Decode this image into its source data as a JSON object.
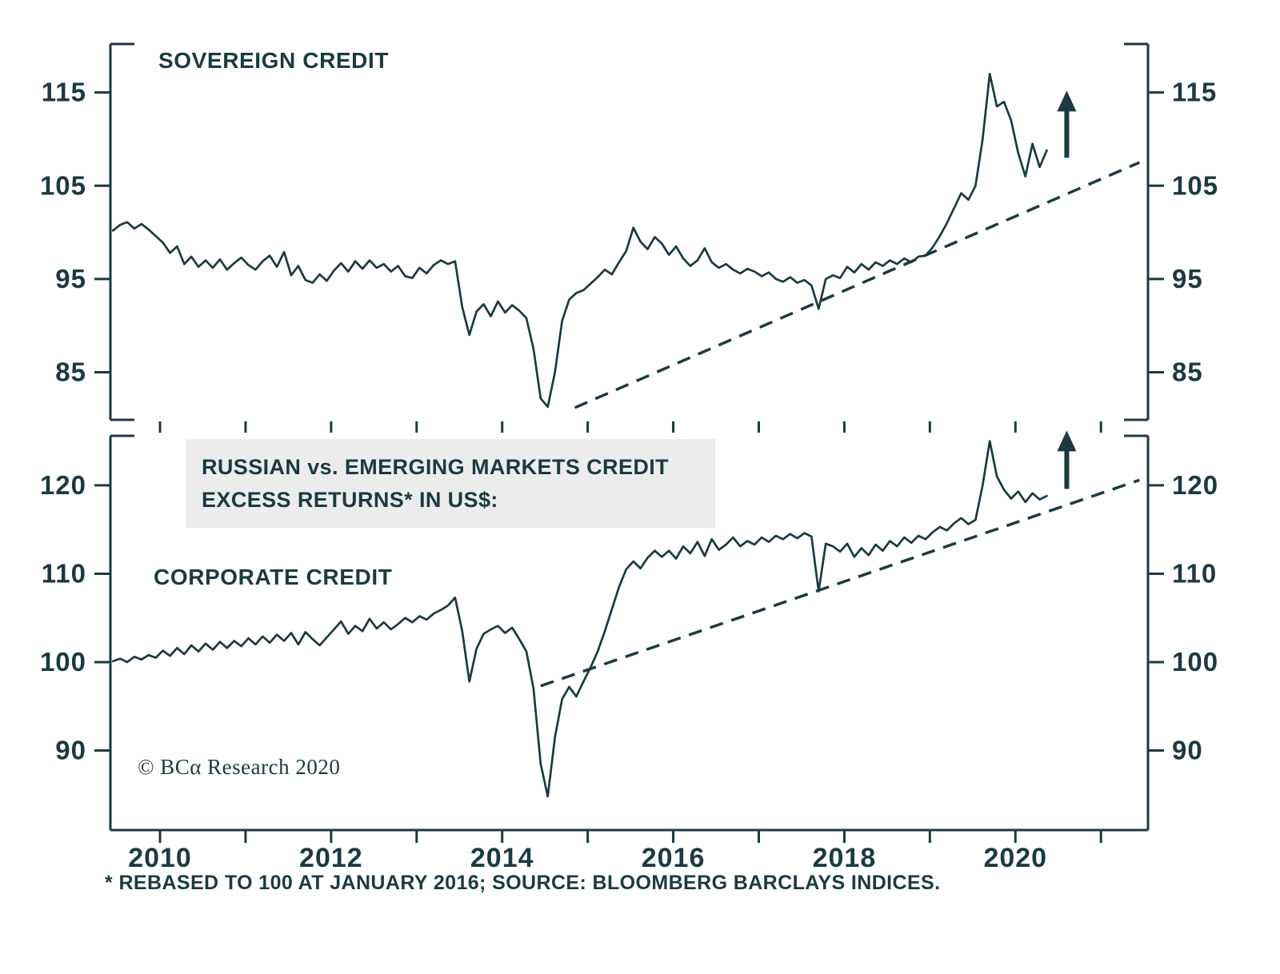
{
  "colors": {
    "ink": "#1b3a41",
    "box_bg": "#ececec",
    "background": "#ffffff"
  },
  "annotations": {
    "copyright": "© BCα Research 2020",
    "footnote": "* REBASED TO 100 AT JANUARY 2016; SOURCE: BLOOMBERG BARCLAYS INDICES."
  },
  "chart_data": {
    "type": "line",
    "title": "RUSSIAN vs. EMERGING MARKETS CREDIT EXCESS RETURNS* IN US$:",
    "title_line1": "RUSSIAN vs. EMERGING MARKETS CREDIT",
    "title_line2": "EXCESS RETURNS* IN US$:",
    "xlim": [
      2009.42,
      2021.55
    ],
    "xticks_years": [
      2010,
      2011,
      2012,
      2013,
      2014,
      2015,
      2016,
      2017,
      2018,
      2019,
      2020,
      2021
    ],
    "xtick_labels": [
      {
        "year": 2010,
        "label": "2010"
      },
      {
        "year": 2012,
        "label": "2012"
      },
      {
        "year": 2014,
        "label": "2014"
      },
      {
        "year": 2016,
        "label": "2016"
      },
      {
        "year": 2018,
        "label": "2018"
      },
      {
        "year": 2020,
        "label": "2020"
      }
    ],
    "panels": [
      {
        "name": "SOVEREIGN CREDIT",
        "ylim": [
          79.9,
          120.2
        ],
        "yticks": [
          85,
          95,
          105,
          115
        ],
        "grid": false,
        "legend": "none",
        "series": {
          "name": "Russian vs. EM sovereign credit excess returns",
          "start": 2009.45,
          "step": 0.083333,
          "values": [
            100.2,
            100.8,
            101.1,
            100.4,
            100.9,
            100.3,
            99.6,
            98.9,
            97.8,
            98.5,
            96.6,
            97.4,
            96.3,
            97.0,
            96.2,
            97.1,
            96.0,
            96.7,
            97.3,
            96.5,
            96.0,
            96.9,
            97.5,
            96.3,
            97.9,
            95.4,
            96.4,
            94.9,
            94.6,
            95.5,
            94.8,
            95.9,
            96.7,
            95.8,
            96.9,
            96.1,
            97.0,
            96.2,
            96.6,
            95.8,
            96.4,
            95.3,
            95.1,
            96.2,
            95.6,
            96.5,
            97.0,
            96.6,
            96.9,
            92.0,
            89.0,
            91.5,
            92.3,
            91.0,
            92.6,
            91.4,
            92.2,
            91.6,
            90.8,
            87.5,
            82.2,
            81.3,
            85.0,
            90.5,
            92.8,
            93.5,
            93.8,
            94.5,
            95.2,
            96.0,
            95.5,
            96.8,
            98.0,
            100.5,
            99.0,
            98.2,
            99.5,
            98.8,
            97.6,
            98.5,
            97.2,
            96.4,
            97.0,
            98.3,
            96.8,
            96.2,
            96.6,
            96.0,
            95.6,
            96.1,
            95.8,
            95.3,
            95.7,
            95.0,
            94.7,
            95.2,
            94.6,
            94.9,
            94.3,
            91.8,
            95.0,
            95.4,
            95.1,
            96.3,
            95.7,
            96.6,
            96.0,
            96.8,
            96.4,
            97.0,
            96.6,
            97.2,
            96.8,
            97.4,
            97.5,
            98.4,
            99.6,
            101.0,
            102.6,
            104.2,
            103.5,
            105.0,
            110.0,
            117.0,
            113.5,
            114.0,
            112.0,
            108.5,
            106.0,
            109.5,
            107.0,
            108.8
          ]
        },
        "trendline": [
          [
            2014.85,
            81.2
          ],
          [
            2021.45,
            107.5
          ]
        ],
        "arrow": {
          "x": 2020.6,
          "y_from": 108.0,
          "y_to": 115.2
        }
      },
      {
        "name": "CORPORATE CREDIT",
        "ylim": [
          81.0,
          125.6
        ],
        "yticks": [
          90,
          100,
          110,
          120
        ],
        "grid": false,
        "legend": "none",
        "series": {
          "name": "Russian vs. EM corporate credit excess returns",
          "start": 2009.45,
          "step": 0.083333,
          "values": [
            100.1,
            100.4,
            100.0,
            100.6,
            100.3,
            100.8,
            100.5,
            101.3,
            100.7,
            101.6,
            100.9,
            101.9,
            101.2,
            102.1,
            101.4,
            102.3,
            101.6,
            102.4,
            101.8,
            102.7,
            102.0,
            102.9,
            102.2,
            103.1,
            102.4,
            103.3,
            102.0,
            103.4,
            102.6,
            101.9,
            102.8,
            103.7,
            104.6,
            103.2,
            104.1,
            103.5,
            104.9,
            103.8,
            104.5,
            103.7,
            104.3,
            105.0,
            104.5,
            105.2,
            104.8,
            105.5,
            105.9,
            106.4,
            107.3,
            103.5,
            97.8,
            101.5,
            103.2,
            103.7,
            104.1,
            103.3,
            103.9,
            102.6,
            101.2,
            97.0,
            88.5,
            84.8,
            91.5,
            95.8,
            97.2,
            96.1,
            97.8,
            99.4,
            101.2,
            103.5,
            106.0,
            108.5,
            110.5,
            111.4,
            110.6,
            111.8,
            112.6,
            111.9,
            112.6,
            111.7,
            113.1,
            112.3,
            113.6,
            112.0,
            113.9,
            112.7,
            113.3,
            114.1,
            113.1,
            113.7,
            113.3,
            114.1,
            113.6,
            114.3,
            113.9,
            114.5,
            114.0,
            114.6,
            114.2,
            108.0,
            113.4,
            113.1,
            112.5,
            113.4,
            111.9,
            112.9,
            112.1,
            113.3,
            112.6,
            113.7,
            113.1,
            114.1,
            113.5,
            114.3,
            113.9,
            114.7,
            115.3,
            114.9,
            115.7,
            116.3,
            115.6,
            116.1,
            120.0,
            125.0,
            121.0,
            119.5,
            118.5,
            119.3,
            118.1,
            119.1,
            118.4,
            118.8
          ]
        },
        "trendline": [
          [
            2014.45,
            97.3
          ],
          [
            2021.45,
            120.6
          ]
        ],
        "arrow": {
          "x": 2020.6,
          "y_from": 119.6,
          "y_to": 126.2
        }
      }
    ]
  }
}
